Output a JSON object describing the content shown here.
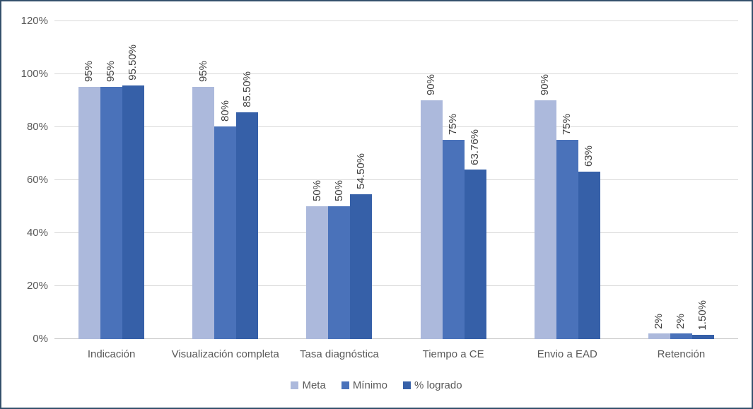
{
  "chart_data": {
    "type": "bar",
    "title": "",
    "categories": [
      "Indicación",
      "Visualización completa",
      "Tasa diagnóstica",
      "Tiempo a CE",
      "Envio a EAD",
      "Retención"
    ],
    "series": [
      {
        "name": "Meta",
        "color": "#ACB9DC",
        "values": [
          95,
          95,
          50,
          90,
          90,
          2
        ],
        "labels": [
          "95%",
          "95%",
          "50%",
          "90%",
          "90%",
          "2%"
        ]
      },
      {
        "name": "Mínimo",
        "color": "#4A72BA",
        "values": [
          95,
          80,
          50,
          75,
          75,
          2
        ],
        "labels": [
          "95%",
          "80%",
          "50%",
          "75%",
          "75%",
          "2%"
        ]
      },
      {
        "name": "% logrado",
        "color": "#3660A8",
        "values": [
          95.5,
          85.5,
          54.5,
          63.76,
          63,
          1.5
        ],
        "labels": [
          "95.50%",
          "85.50%",
          "54.50%",
          "63.76%",
          "63%",
          "1.50%"
        ]
      }
    ],
    "y_axis": {
      "ticks": [
        "0%",
        "20%",
        "40%",
        "60%",
        "80%",
        "100%",
        "120%"
      ],
      "tick_values": [
        0,
        20,
        40,
        60,
        80,
        100,
        120
      ],
      "max": 120
    },
    "legend": {
      "position": "bottom",
      "entries": [
        "Meta",
        "Mínimo",
        "% logrado"
      ]
    },
    "grid": true,
    "layout_hints": {
      "bar_labels_rotated_90deg": true,
      "ylim": [
        0,
        120
      ]
    },
    "colors": {
      "frame_border": "#34506B",
      "gridline": "#D9D9D9",
      "axis_line": "#C9C9C9",
      "axis_text": "#595959",
      "data_label_text": "#404040"
    }
  }
}
